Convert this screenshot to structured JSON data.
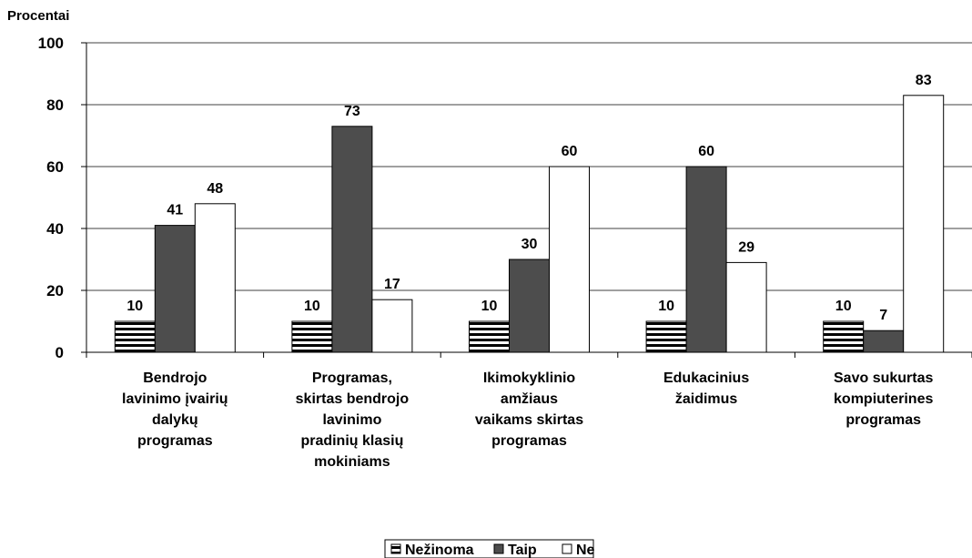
{
  "chart_data": {
    "type": "bar",
    "y_label": "Procentai",
    "categories": [
      "Bendrojo\nlavinimo įvairių\ndalykų\nprogramas",
      "Programas,\nskirtas bendrojo\nlavinimo\npradinių klasių\nmokiniams",
      "Ikimokyklinio\namžiaus\nvaikams skirtas\nprogramas",
      "Edukacinius\nžaidimus",
      "Savo sukurtas\nkompiuterines\nprogramas"
    ],
    "series": [
      {
        "name": "Nežinoma",
        "color": "striped",
        "values": [
          10,
          10,
          10,
          10,
          10
        ]
      },
      {
        "name": "Taip",
        "color": "#4d4d4d",
        "values": [
          41,
          73,
          30,
          60,
          7
        ]
      },
      {
        "name": "Ne",
        "color": "#ffffff",
        "values": [
          48,
          17,
          60,
          29,
          83
        ]
      }
    ],
    "ylim": [
      0,
      100
    ],
    "yticks": [
      0,
      20,
      40,
      60,
      80,
      100
    ],
    "grid": true,
    "legend": "bottom"
  }
}
